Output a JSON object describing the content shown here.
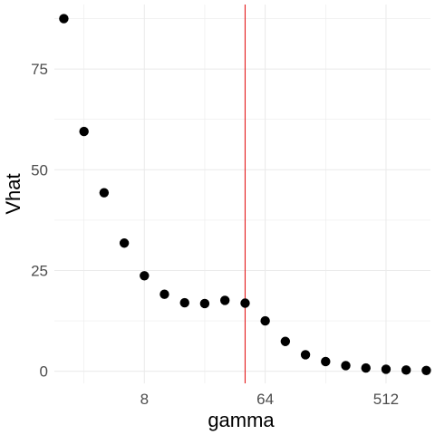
{
  "chart_data": {
    "type": "scatter",
    "title": "",
    "xlabel": "gamma",
    "ylabel": "Vhat",
    "x_scale": "log2",
    "x_ticks": [
      8,
      64,
      512
    ],
    "x_tick_labels": [
      "8",
      "64",
      "512"
    ],
    "y_ticks": [
      0,
      25,
      50,
      75
    ],
    "y_tick_labels": [
      "0",
      "25",
      "50",
      "75"
    ],
    "xlim": [
      1.7,
      1100
    ],
    "ylim": [
      -3,
      91
    ],
    "grid": true,
    "legend": "none",
    "points": [
      {
        "x": 2,
        "y": 87.5
      },
      {
        "x": 2.83,
        "y": 59.5
      },
      {
        "x": 4,
        "y": 44.3
      },
      {
        "x": 5.66,
        "y": 31.8
      },
      {
        "x": 8,
        "y": 23.7
      },
      {
        "x": 11.3,
        "y": 19.1
      },
      {
        "x": 16,
        "y": 17.0
      },
      {
        "x": 22.6,
        "y": 16.8
      },
      {
        "x": 32,
        "y": 17.6
      },
      {
        "x": 45.3,
        "y": 16.9
      },
      {
        "x": 64,
        "y": 12.5
      },
      {
        "x": 90.5,
        "y": 7.4
      },
      {
        "x": 128,
        "y": 4.1
      },
      {
        "x": 181,
        "y": 2.4
      },
      {
        "x": 256,
        "y": 1.4
      },
      {
        "x": 362,
        "y": 0.8
      },
      {
        "x": 512,
        "y": 0.5
      },
      {
        "x": 724,
        "y": 0.3
      },
      {
        "x": 1024,
        "y": 0.2
      }
    ],
    "vline": {
      "x": 45.3,
      "color": "#e41a1c"
    },
    "colors": {
      "points": "#000000",
      "grid": "#ebebeb",
      "background": "#ffffff"
    }
  }
}
